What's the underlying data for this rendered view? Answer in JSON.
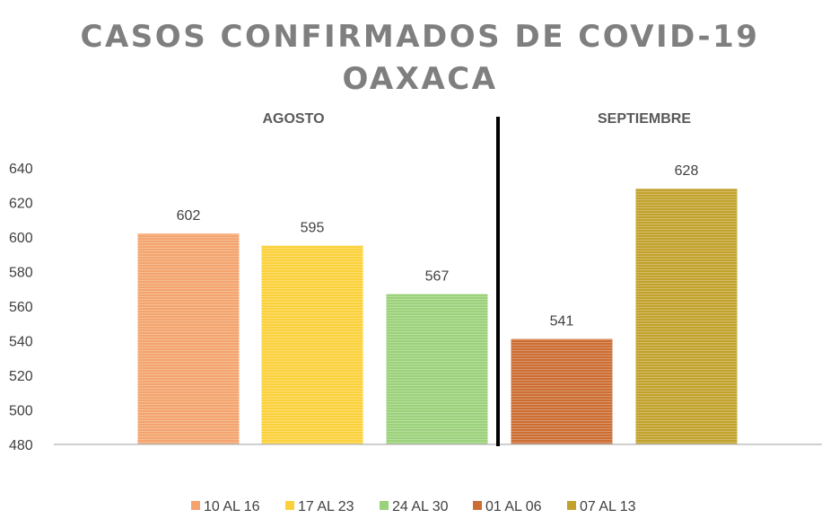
{
  "chart_data": {
    "type": "bar",
    "title": "CASOS CONFIRMADOS DE COVID-19",
    "subtitle": "OAXACA",
    "groups": [
      {
        "label": "AGOSTO",
        "categories": [
          "10 AL 16",
          "17 AL 23",
          "24 AL 30"
        ]
      },
      {
        "label": "SEPTIEMBRE",
        "categories": [
          "01 AL 06",
          "07 AL 13"
        ]
      }
    ],
    "categories": [
      "10 AL 16",
      "17 AL 23",
      "24 AL 30",
      "01 AL 06",
      "07 AL 13"
    ],
    "values": [
      602,
      595,
      567,
      541,
      628
    ],
    "colors": [
      "#f4a46e",
      "#fbd13b",
      "#9bd17a",
      "#cc6e33",
      "#c2a22d"
    ],
    "ylim": [
      480,
      640
    ],
    "yticks": [
      480,
      500,
      520,
      540,
      560,
      580,
      600,
      620,
      640
    ],
    "grid": false,
    "legend_position": "bottom",
    "xlabel": "",
    "ylabel": ""
  }
}
